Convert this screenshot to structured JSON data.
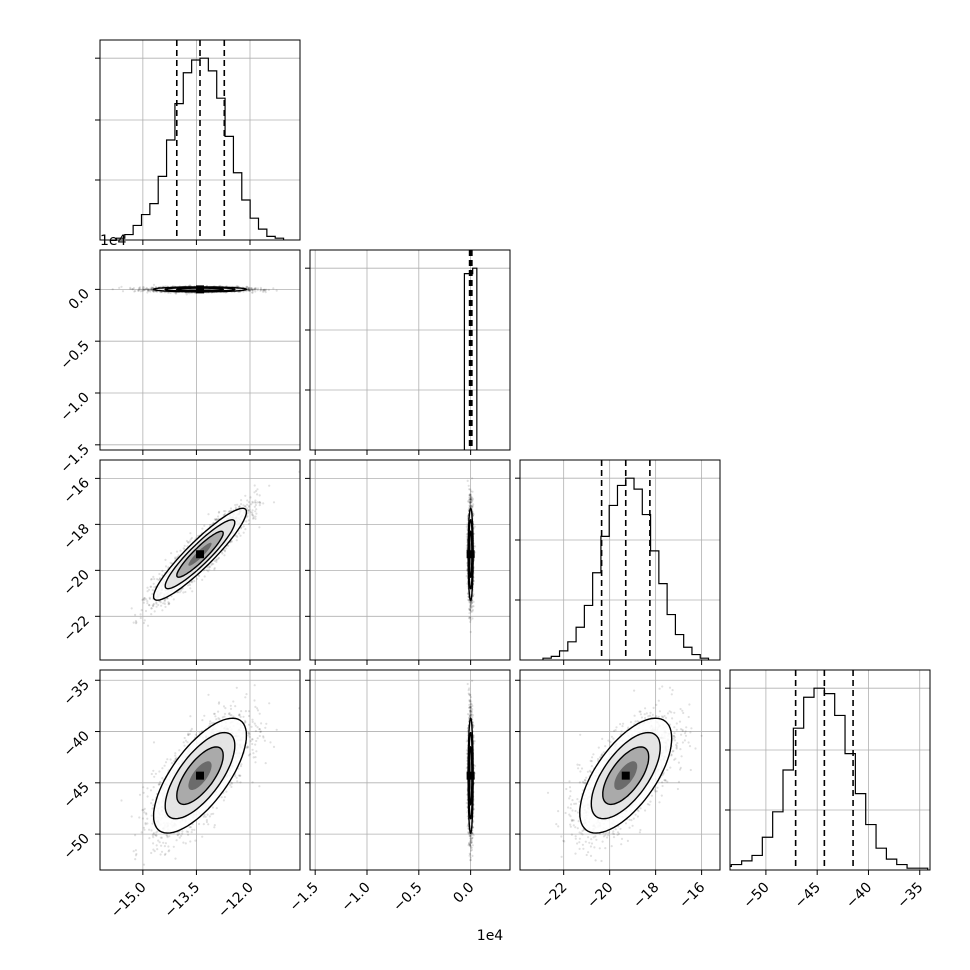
{
  "chart_data": {
    "type": "corner",
    "parameters": [
      {
        "range": [
          -16.2,
          -10.6
        ],
        "ticks": [
          -15.0,
          -13.5,
          -12.0
        ],
        "tick_labels": [
          "−15.0",
          "−13.5",
          "−12.0"
        ],
        "mean": -13.4,
        "sd": 0.65,
        "quantiles": [
          -14.05,
          -13.4,
          -12.72
        ],
        "histogram": [
          1,
          3,
          8,
          14,
          20,
          35,
          55,
          75,
          92,
          99,
          100,
          93,
          78,
          57,
          37,
          22,
          12,
          6,
          2,
          1
        ]
      },
      {
        "offset_label": "1e4",
        "range": [
          -1.55,
          0.38
        ],
        "ticks": [
          -1.5,
          -1.0,
          -0.5,
          0.0
        ],
        "tick_labels": [
          "−1.5",
          "−1.0",
          "−0.5",
          "0.0"
        ],
        "mean": 0.0,
        "sd": 0.012,
        "quantiles": [
          -0.01,
          0.0,
          0.012
        ],
        "histogram_bins": [
          -0.06,
          0.02,
          0.06
        ],
        "histogram": [
          97,
          100
        ]
      },
      {
        "range": [
          -23.9,
          -15.2
        ],
        "ticks": [
          -22,
          -20,
          -18,
          -16
        ],
        "tick_labels": [
          "−22",
          "−20",
          "−18",
          "−16"
        ],
        "mean": -19.3,
        "sd": 1.0,
        "quantiles": [
          -20.35,
          -19.3,
          -18.25
        ],
        "histogram": [
          1,
          2,
          5,
          10,
          18,
          30,
          48,
          68,
          85,
          96,
          100,
          94,
          80,
          60,
          42,
          25,
          14,
          7,
          3,
          1
        ]
      },
      {
        "range": [
          -53.5,
          -34.0
        ],
        "ticks": [
          -50,
          -45,
          -40,
          -35
        ],
        "tick_labels": [
          "−50",
          "−45",
          "−40",
          "−35"
        ],
        "mean": -44.3,
        "sd": 2.8,
        "quantiles": [
          -47.1,
          -44.3,
          -41.5
        ],
        "histogram": [
          2,
          3,
          5,
          8,
          18,
          32,
          55,
          78,
          95,
          100,
          97,
          85,
          64,
          42,
          25,
          12,
          6,
          3,
          1,
          1
        ]
      }
    ],
    "correlations": {
      "1_0": 0.0,
      "2_0": 0.92,
      "2_1": 0.0,
      "3_0": 0.7,
      "3_1": 0.0,
      "3_2": 0.65
    },
    "quantile_levels": [
      0.16,
      0.5,
      0.84
    ],
    "contour_levels_sigma": [
      0.5,
      1.0,
      1.5,
      2.0
    ],
    "grid": true
  }
}
